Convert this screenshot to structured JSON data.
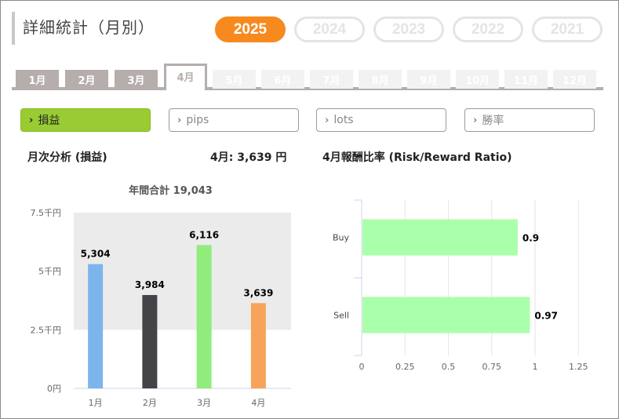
{
  "page": {
    "title": "詳細統計（月別）"
  },
  "years": [
    {
      "label": "2025",
      "active": true
    },
    {
      "label": "2024",
      "active": false
    },
    {
      "label": "2023",
      "active": false
    },
    {
      "label": "2022",
      "active": false
    },
    {
      "label": "2021",
      "active": false
    }
  ],
  "months": [
    {
      "label": "1月",
      "state": "past"
    },
    {
      "label": "2月",
      "state": "past"
    },
    {
      "label": "3月",
      "state": "past"
    },
    {
      "label": "4月",
      "state": "active"
    },
    {
      "label": "5月",
      "state": "future"
    },
    {
      "label": "6月",
      "state": "future"
    },
    {
      "label": "7月",
      "state": "future"
    },
    {
      "label": "8月",
      "state": "future"
    },
    {
      "label": "9月",
      "state": "future"
    },
    {
      "label": "10月",
      "state": "future"
    },
    {
      "label": "11月",
      "state": "future"
    },
    {
      "label": "12月",
      "state": "future"
    }
  ],
  "filters": [
    {
      "label": "損益",
      "active": true
    },
    {
      "label": "pips",
      "active": false
    },
    {
      "label": "lots",
      "active": false
    },
    {
      "label": "勝率",
      "active": false
    }
  ],
  "chevron_glyph": "›",
  "left_section": {
    "title": "月次分析 (損益)",
    "month_summary": "4月:  3,639 円"
  },
  "right_section": {
    "title": "4月報酬比率 (Risk/Reward Ratio)"
  },
  "chart_data": [
    {
      "type": "bar",
      "title": "年間合計 19,043",
      "categories": [
        "1月",
        "2月",
        "3月",
        "4月"
      ],
      "values": [
        5304,
        3984,
        6116,
        3639
      ],
      "value_labels": [
        "5,304",
        "3,984",
        "6,116",
        "3,639"
      ],
      "colors": [
        "#7cb5ec",
        "#434348",
        "#90ed7d",
        "#f7a35c"
      ],
      "ylim": [
        0,
        7500
      ],
      "yticks": [
        0,
        2500,
        5000,
        7500
      ],
      "ytick_labels": [
        "0円",
        "2.5千円",
        "5千円",
        "7.5千円"
      ],
      "xlabel": "",
      "ylabel": "",
      "plot_bands": "alternating gray",
      "legend": "none"
    },
    {
      "type": "bar",
      "orientation": "horizontal",
      "title": "",
      "categories": [
        "Buy",
        "Sell"
      ],
      "values": [
        0.9,
        0.97
      ],
      "value_labels": [
        "0.9",
        "0.97"
      ],
      "color": "#aaffaa",
      "xlim": [
        0,
        1.25
      ],
      "xticks": [
        0,
        0.25,
        0.5,
        0.75,
        1,
        1.25
      ],
      "xtick_labels": [
        "0",
        "0.25",
        "0.5",
        "0.75",
        "1",
        "1.25"
      ],
      "grid": "vertical",
      "legend": "none"
    }
  ]
}
